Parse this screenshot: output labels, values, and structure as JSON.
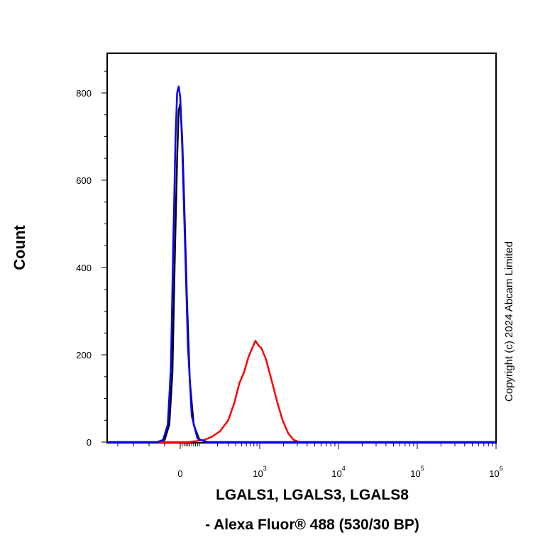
{
  "chart_data": {
    "type": "line",
    "xlabel_line1": "LGALS1, LGALS3, LGALS8",
    "xlabel_line2": "- Alexa Fluor® 488 (530/30 BP)",
    "ylabel": "Count",
    "copyright": "Copyright (c) 2024 Abcam Limited",
    "x_scale": "biexponential",
    "ylim": [
      0,
      900
    ],
    "y_ticks": [
      0,
      200,
      400,
      600,
      800
    ],
    "x_ticks": [
      {
        "value": 0,
        "base": "0",
        "exp": ""
      },
      {
        "value": 1000,
        "base": "10",
        "exp": "3"
      },
      {
        "value": 10000,
        "base": "10",
        "exp": "4"
      },
      {
        "value": 100000,
        "base": "10",
        "exp": "5"
      },
      {
        "value": 1000000,
        "base": "10",
        "exp": "6"
      }
    ],
    "grid": false,
    "series": [
      {
        "color": "#ff0000",
        "x": [
          40,
          80,
          120,
          160,
          220,
          300,
          380,
          460,
          550,
          650,
          750,
          850,
          950,
          1050,
          1200,
          1400,
          1650,
          1950,
          2300,
          2700,
          3200
        ],
        "y": [
          0,
          2,
          5,
          12,
          25,
          50,
          90,
          135,
          160,
          195,
          215,
          232,
          222,
          215,
          190,
          145,
          95,
          50,
          20,
          5,
          0
        ]
      },
      {
        "color": "#000000",
        "x": [
          -150,
          -100,
          -70,
          -50,
          -35,
          -20,
          -10,
          0,
          10,
          20,
          35,
          50,
          70,
          100,
          140
        ],
        "y": [
          0,
          5,
          40,
          160,
          420,
          650,
          760,
          775,
          700,
          560,
          330,
          140,
          40,
          5,
          0
        ]
      },
      {
        "color": "#0000ff",
        "x": [
          -150,
          -110,
          -80,
          -60,
          -45,
          -30,
          -20,
          -10,
          0,
          10,
          25,
          40,
          60,
          90,
          130
        ],
        "y": [
          0,
          5,
          40,
          170,
          450,
          700,
          800,
          815,
          790,
          680,
          450,
          220,
          60,
          8,
          0
        ]
      }
    ]
  }
}
